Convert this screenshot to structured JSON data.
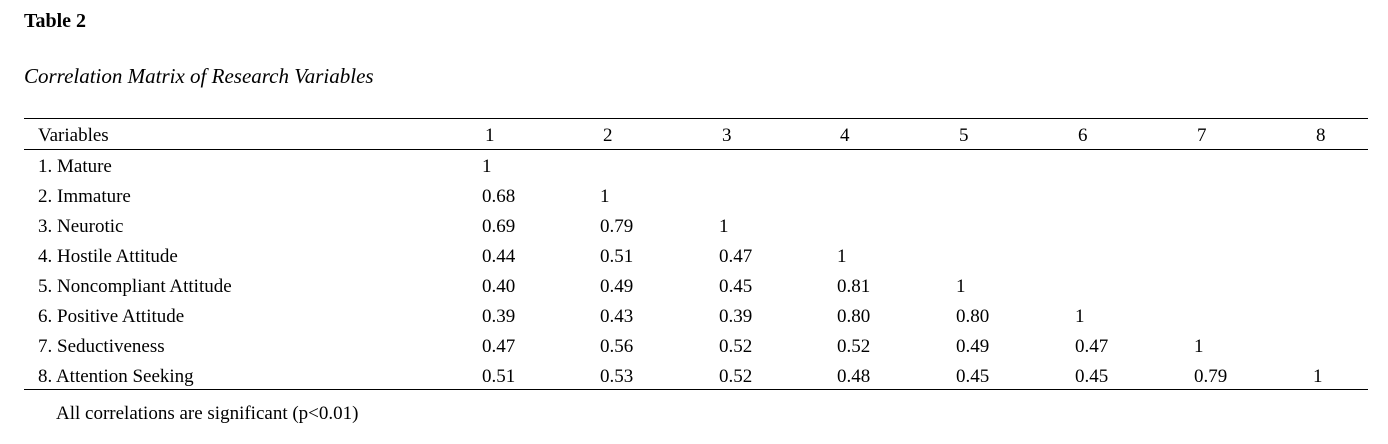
{
  "header": {
    "title": "Table 2",
    "subtitle": "Correlation Matrix of Research Variables"
  },
  "table": {
    "columns": [
      "Variables",
      "1",
      "2",
      "3",
      "4",
      "5",
      "6",
      "7",
      "8"
    ],
    "rows": [
      {
        "label": "1. Mature",
        "values": [
          "1"
        ]
      },
      {
        "label": "2. Immature",
        "values": [
          "0.68",
          "1"
        ]
      },
      {
        "label": "3. Neurotic",
        "values": [
          "0.69",
          "0.79",
          "1"
        ]
      },
      {
        "label": "4. Hostile Attitude",
        "values": [
          "0.44",
          "0.51",
          "0.47",
          "1"
        ]
      },
      {
        "label": "5. Noncompliant Attitude",
        "values": [
          "0.40",
          "0.49",
          "0.45",
          "0.81",
          "1"
        ]
      },
      {
        "label": "6. Positive Attitude",
        "values": [
          "0.39",
          "0.43",
          "0.39",
          "0.80",
          "0.80",
          "1"
        ]
      },
      {
        "label": "7. Seductiveness",
        "values": [
          "0.47",
          "0.56",
          "0.52",
          "0.52",
          "0.49",
          "0.47",
          "1"
        ]
      },
      {
        "label": "8. Attention Seeking",
        "values": [
          "0.51",
          "0.53",
          "0.52",
          "0.48",
          "0.45",
          "0.45",
          "0.79",
          "1"
        ]
      }
    ]
  },
  "note": "All correlations are significant (p<0.01)"
}
